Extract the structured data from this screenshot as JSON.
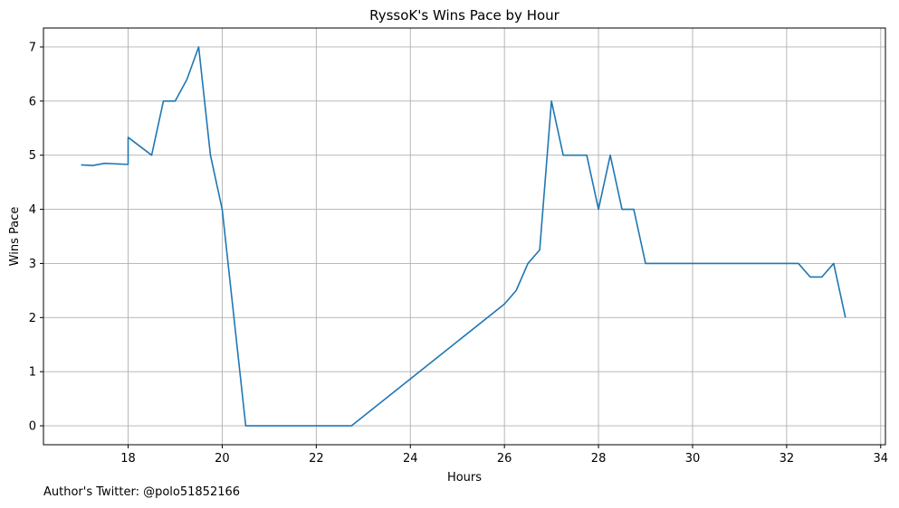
{
  "footer": {
    "text": "Author's Twitter: @polo51852166"
  },
  "chart_data": {
    "type": "line",
    "title": "RyssoK's Wins Pace by Hour",
    "xlabel": "Hours",
    "ylabel": "Wins Pace",
    "xlim": [
      16.2,
      34.1
    ],
    "ylim": [
      -0.35,
      7.35
    ],
    "xticks": [
      18,
      20,
      22,
      24,
      26,
      28,
      30,
      32,
      34
    ],
    "yticks": [
      0,
      1,
      2,
      3,
      4,
      5,
      6,
      7
    ],
    "grid": true,
    "line_color": "#1f77b4",
    "series": [
      {
        "x": [
          17.0,
          17.25,
          17.5,
          17.75,
          18.0,
          18.0,
          18.5,
          18.75,
          19.0,
          19.25,
          19.5,
          19.75,
          20.0,
          20.5,
          20.75,
          21.0,
          21.5,
          22.0,
          22.5,
          22.75,
          26.0,
          26.25,
          26.5,
          26.75,
          27.0,
          27.25,
          27.5,
          27.75,
          28.0,
          28.25,
          28.5,
          28.75,
          29.0,
          29.5,
          30.0,
          31.0,
          32.0,
          32.25,
          32.5,
          32.75,
          33.0,
          33.25
        ],
        "y": [
          4.82,
          4.81,
          4.85,
          4.84,
          4.83,
          5.33,
          5.0,
          6.0,
          6.0,
          6.4,
          7.0,
          5.0,
          4.0,
          0.0,
          0.0,
          0.0,
          0.0,
          0.0,
          0.0,
          0.0,
          2.25,
          2.5,
          3.0,
          3.25,
          6.0,
          5.0,
          5.0,
          5.0,
          4.0,
          5.0,
          4.0,
          4.0,
          3.0,
          3.0,
          3.0,
          3.0,
          3.0,
          3.0,
          2.75,
          2.75,
          3.0,
          2.0
        ]
      }
    ]
  }
}
